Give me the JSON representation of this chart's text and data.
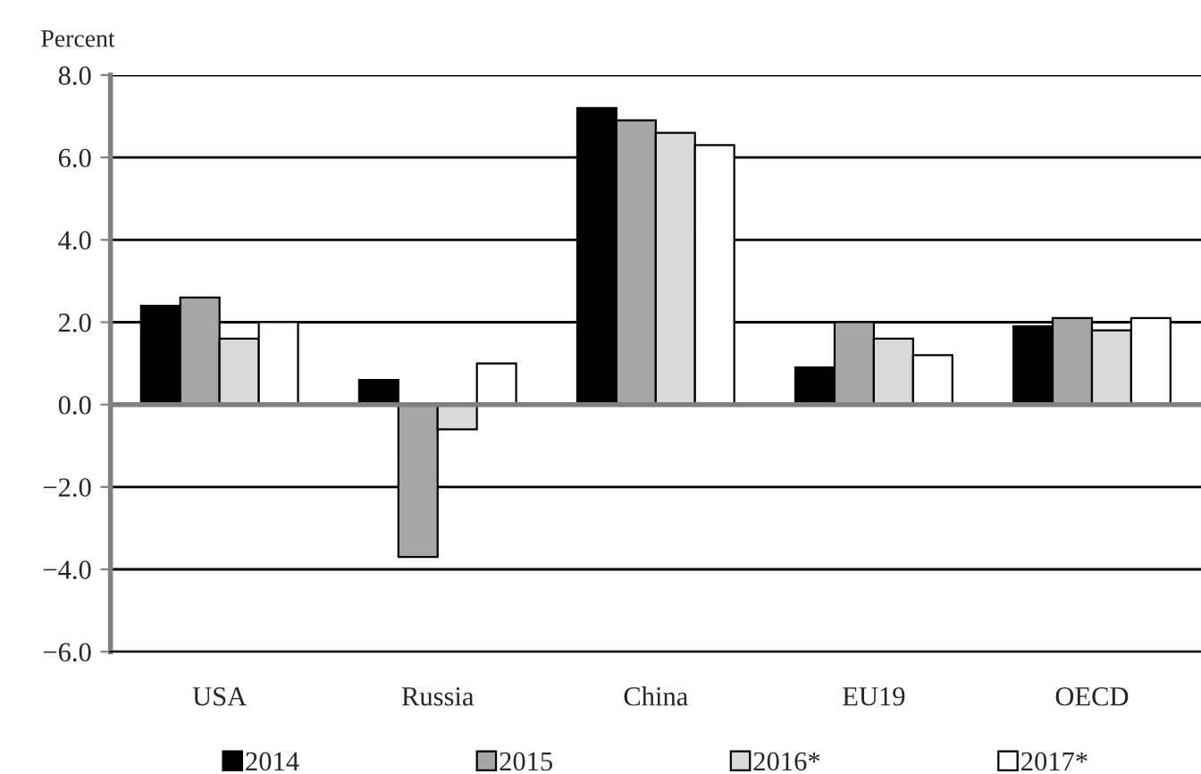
{
  "chart_data": {
    "type": "bar",
    "ylabel": "Percent",
    "categories": [
      "USA",
      "Russia",
      "China",
      "EU19",
      "OECD"
    ],
    "series": [
      {
        "name": "2014",
        "color": "#000000",
        "values": [
          2.4,
          0.6,
          7.2,
          0.9,
          1.9
        ]
      },
      {
        "name": "2015",
        "color": "#a6a6a6",
        "values": [
          2.6,
          -3.7,
          6.9,
          2.0,
          2.1
        ]
      },
      {
        "name": "2016*",
        "color": "#d9d9d9",
        "values": [
          1.6,
          -0.6,
          6.6,
          1.6,
          1.8
        ]
      },
      {
        "name": "2017*",
        "color": "#ffffff",
        "values": [
          2.0,
          1.0,
          6.3,
          1.2,
          2.1
        ]
      }
    ],
    "ylim": [
      -6,
      8
    ],
    "yticks": [
      {
        "value": -6,
        "label": "−6.0"
      },
      {
        "value": -4,
        "label": "−4.0"
      },
      {
        "value": -2,
        "label": "−2.0"
      },
      {
        "value": 0,
        "label": "0.0"
      },
      {
        "value": 2,
        "label": "2.0"
      },
      {
        "value": 4,
        "label": "4.0"
      },
      {
        "value": 6,
        "label": "6.0"
      },
      {
        "value": 8,
        "label": "8.0"
      }
    ],
    "grid": "y",
    "legend": "bottom"
  }
}
